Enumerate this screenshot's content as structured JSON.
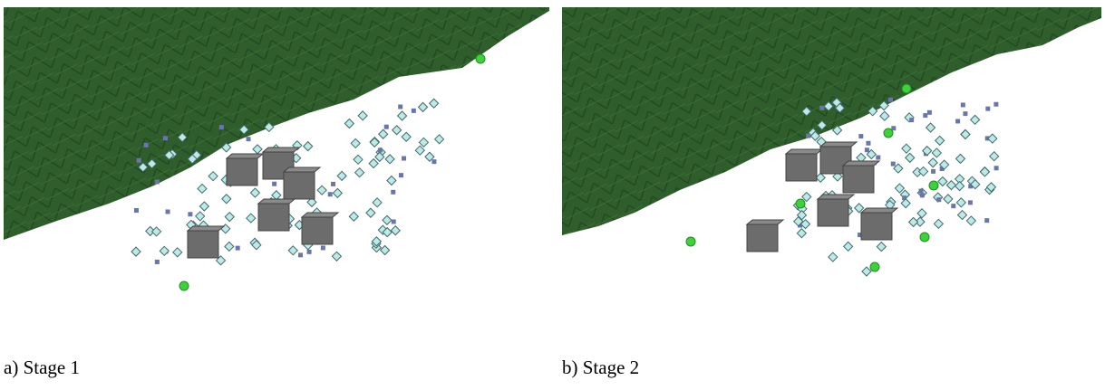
{
  "panels": [
    {
      "caption": "a) Stage 1"
    },
    {
      "caption": "b) Stage 2"
    }
  ]
}
